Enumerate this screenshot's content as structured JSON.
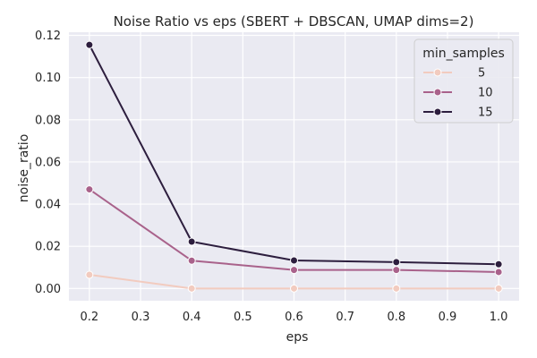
{
  "chart_data": {
    "type": "line",
    "title": "Noise Ratio vs eps (SBERT + DBSCAN, UMAP dims=2)",
    "xlabel": "eps",
    "ylabel": "noise_ratio",
    "x": [
      0.2,
      0.4,
      0.6,
      0.8,
      1.0
    ],
    "xlim": [
      0.16,
      1.04
    ],
    "ylim": [
      -0.0058,
      0.1215
    ],
    "xticks": [
      "0.2",
      "0.3",
      "0.4",
      "0.5",
      "0.6",
      "0.7",
      "0.8",
      "0.9",
      "1.0"
    ],
    "yticks": [
      "0.00",
      "0.02",
      "0.04",
      "0.06",
      "0.08",
      "0.10",
      "0.12"
    ],
    "grid": true,
    "legend": {
      "title": "min_samples",
      "position": "top-right"
    },
    "series": [
      {
        "name": "5",
        "color": "#f2cbbf",
        "values": [
          0.0065,
          0.0,
          0.0,
          0.0,
          0.0
        ]
      },
      {
        "name": "10",
        "color": "#a9628b",
        "values": [
          0.047,
          0.0132,
          0.0088,
          0.0088,
          0.0078
        ]
      },
      {
        "name": "15",
        "color": "#2d1e3e",
        "values": [
          0.1155,
          0.0222,
          0.0133,
          0.0125,
          0.0115
        ]
      }
    ]
  }
}
